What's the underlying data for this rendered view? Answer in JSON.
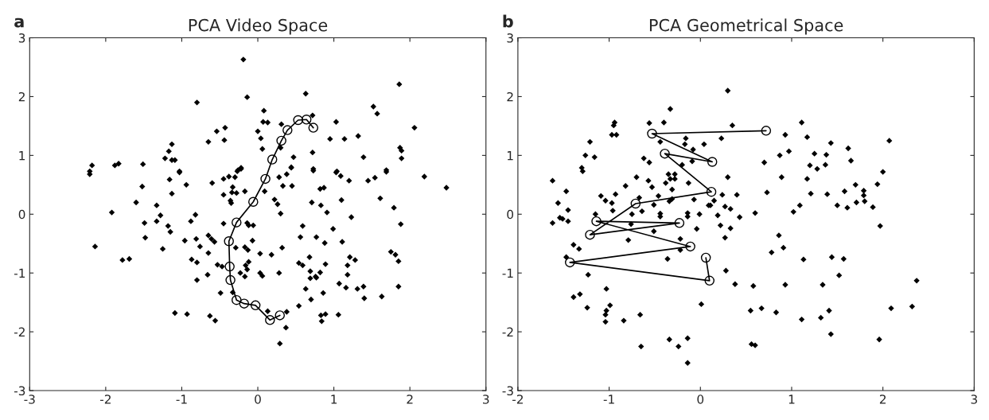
{
  "chart_data": [
    {
      "type": "scatter",
      "title": "PCA Video Space",
      "annotations": [
        "a"
      ],
      "xlim": [
        -3,
        3
      ],
      "ylim": [
        -3,
        3
      ],
      "xticks": [
        -3,
        -2,
        -1,
        0,
        1,
        2,
        3
      ],
      "yticks": [
        -3,
        -2,
        -1,
        0,
        1,
        2,
        3
      ],
      "grid": false,
      "series": [
        {
          "type": "scatter",
          "marker": "diamond",
          "color": "#000000",
          "x": [
            -0.19,
            -0.8,
            -0.14,
            0.63,
            1.86,
            0.08,
            0.07,
            0.13,
            0,
            0.04,
            0.06,
            -0.54,
            -0.43,
            -0.44,
            -0.65,
            -1.13,
            -1.17,
            -1.22,
            -1.13,
            -1.09,
            -1.51,
            -1.88,
            -1.83,
            -2.18,
            0.31,
            0.72,
            1.03,
            0.95,
            1.14,
            1.32,
            1.52,
            1.57,
            2.06,
            1.39,
            1.87,
            1.89,
            1.89,
            0.72,
            0.47,
            0.44,
            0.3,
            -0.22,
            -0.26,
            0.73,
            1.04,
            1.69,
            -2.21,
            -1.03,
            -2.21,
            -1.16,
            -1.03,
            -1.52,
            -1.13,
            -0.94,
            -1.6,
            -1.33,
            -1.92,
            -1.28,
            -1.33,
            -1.49,
            -1.18,
            -1.15,
            -1.48,
            -2.14,
            -1.25,
            -1.78,
            -1.69,
            -0.96,
            -0.81,
            -0.76,
            -0.88,
            -0.82,
            -0.6,
            -0.45,
            -0.38,
            -0.3,
            -0.27,
            -0.22,
            -0.33,
            -0.34,
            -0.28,
            -0.17,
            -0.45,
            -0.36,
            -0.35,
            -0.45,
            -0.65,
            -0.61,
            -0.57,
            -0.65,
            -0.87,
            -0.8,
            -0.53,
            -0.47,
            -0.66,
            -0.8,
            -0.29,
            -0.14,
            -0.12,
            -0.06,
            -0.07,
            -0.17,
            -0.13,
            0.03,
            -0.12,
            -0.16,
            -0.14,
            -0.23,
            -0.17,
            0.03,
            0.06,
            0.28,
            0.18,
            0.32,
            0.3,
            0.22,
            0.26,
            0.09,
            0.28,
            0.38,
            0.44,
            0.33,
            0.45,
            0.73,
            0.82,
            0.87,
            0.71,
            0.83,
            0.91,
            1.03,
            1.09,
            1.2,
            1.45,
            1.54,
            1.69,
            2.19,
            2.48,
            1.1,
            1.23,
            1.61,
            1.79,
            1.88,
            0.59,
            0.99,
            0.56,
            0.77,
            0.88,
            1.11,
            0.68,
            0.54,
            0.59,
            0.89,
            1.21,
            1.28,
            1.18,
            0.69,
            0.82,
            0.76,
            1.18,
            1.75,
            1.81,
            1.85,
            -0.49,
            -0.33,
            -1.09,
            -0.93,
            -0.63,
            -0.56,
            0.13,
            0.38,
            0.37,
            0.29,
            0.54,
            0.63,
            0.7,
            0.69,
            0.77,
            0.86,
            0.83,
            0.89,
            0.84,
            1.06,
            1.07,
            1.16,
            1.31,
            1.39,
            1.4,
            1.63,
            1.85
          ],
          "values": [
            2.63,
            1.9,
            1.99,
            2.05,
            2.21,
            1.76,
            1.57,
            1.56,
            1.41,
            1.29,
            1.11,
            1.41,
            1.47,
            1.26,
            1.23,
            1.19,
            1.07,
            0.95,
            0.92,
            0.92,
            0.85,
            0.83,
            0.86,
            0.83,
            1.53,
            1.68,
            1.57,
            1.28,
            1.28,
            1.33,
            1.83,
            1.71,
            1.47,
            0.97,
            1.13,
            1.08,
            0.95,
            1.05,
            0.97,
            0.8,
            1.13,
            0.79,
            0.75,
            0.77,
            0.73,
            0.75,
            0.73,
            0.73,
            0.68,
            0.59,
            0.71,
            0.47,
            0.35,
            0.5,
            0.2,
            0.15,
            0.03,
            -0.02,
            -0.12,
            -0.15,
            -0.2,
            -0.3,
            -0.4,
            -0.55,
            -0.59,
            -0.78,
            -0.76,
            -0.45,
            -0.42,
            -0.55,
            -0.12,
            -0.01,
            0.53,
            0.6,
            0.64,
            0.63,
            0.73,
            0.77,
            0.46,
            0.37,
            0.36,
            0.39,
            0.33,
            0.23,
            0.19,
            -0.16,
            -0.36,
            -0.42,
            -0.47,
            -0.66,
            -0.77,
            -0.82,
            -0.86,
            -0.89,
            -1.03,
            -1.12,
            -0.57,
            -0.15,
            -0.19,
            -0.19,
            -0.45,
            -0.56,
            -0.61,
            -0.67,
            -0.81,
            -0.87,
            -0.94,
            -1.0,
            -1.06,
            -1.0,
            -1.05,
            -1.0,
            -0.69,
            -0.57,
            0.01,
            0.25,
            0.17,
            0.39,
            0.63,
            0.68,
            0.79,
            0.48,
            0.48,
            0.74,
            0.43,
            0.45,
            0.2,
            0.15,
            0.03,
            0.71,
            0.65,
            0.57,
            0.57,
            0.62,
            0.72,
            0.64,
            0.45,
            0.24,
            -0.05,
            0.27,
            0.11,
            -0.17,
            -0.2,
            -0.25,
            -0.39,
            -0.39,
            -0.49,
            -0.47,
            -0.73,
            -0.83,
            -0.87,
            -0.85,
            -0.73,
            -0.78,
            -0.87,
            -0.97,
            -0.99,
            -1.06,
            -1.03,
            -0.64,
            -0.69,
            -0.8,
            -1.34,
            -1.33,
            -1.68,
            -1.7,
            -1.73,
            -1.81,
            -1.65,
            -1.66,
            -1.93,
            -2.2,
            -1.56,
            -1.27,
            -1.45,
            -1.09,
            -1.08,
            -1.34,
            -1.72,
            -1.7,
            -1.82,
            -1.71,
            -1.18,
            -1.25,
            -1.27,
            -1.23,
            -1.43,
            -1.4,
            -1.23
          ]
        },
        {
          "type": "line",
          "marker": "circle",
          "color": "#000000",
          "x": [
            0.73,
            0.64,
            0.53,
            0.39,
            0.31,
            0.19,
            0.1,
            -0.06,
            -0.28,
            -0.38,
            -0.37,
            -0.36,
            -0.28,
            -0.18,
            -0.03,
            0.16,
            0.29
          ],
          "values": [
            1.47,
            1.61,
            1.6,
            1.43,
            1.25,
            0.93,
            0.6,
            0.21,
            -0.14,
            -0.46,
            -0.89,
            -1.12,
            -1.46,
            -1.52,
            -1.55,
            -1.8,
            -1.72
          ]
        }
      ]
    },
    {
      "type": "scatter",
      "title": "PCA Geometrical Space",
      "annotations": [
        "b"
      ],
      "xlim": [
        -2,
        3
      ],
      "ylim": [
        -3,
        3
      ],
      "xticks": [
        -2,
        -1,
        0,
        1,
        2,
        3
      ],
      "yticks": [
        -3,
        -2,
        -1,
        0,
        1,
        2,
        3
      ],
      "grid": false,
      "series": [
        {
          "type": "scatter",
          "marker": "diamond",
          "color": "#000000",
          "x": [
            0.3,
            -0.33,
            -0.94,
            -0.95,
            -0.97,
            -0.92,
            -1.21,
            -1.26,
            -1.16,
            -1.3,
            -1.29,
            -0.56,
            -0.4,
            0.35,
            -0.16,
            -0.17,
            -0.08,
            0.04,
            0.23,
            -0.44,
            -0.62,
            -0.56,
            -0.09,
            -0.2,
            0.7,
            1.11,
            0.93,
            1.17,
            1.43,
            1.62,
            2.07,
            1.65,
            0.87,
            0.97,
            1.25,
            1.38,
            1.2,
            1.28,
            1.37,
            2.0,
            -1.62,
            -1.47,
            -1.56,
            -1.45,
            -1.54,
            -1.51,
            -1.45,
            -1.62,
            -1.39,
            -1.33,
            -1.47,
            -1.23,
            -1.09,
            -1.04,
            -0.97,
            -0.93,
            -0.82,
            -0.7,
            -0.96,
            -1.15,
            -0.57,
            -0.53,
            -0.38,
            -0.35,
            -0.33,
            -0.28,
            -0.28,
            -0.31,
            -0.13,
            0.3,
            -0.31,
            -0.34,
            -0.46,
            -0.67,
            -0.64,
            -0.51,
            -0.44,
            -0.44,
            -0.75,
            -0.76,
            -0.07,
            -0.01,
            -0.14,
            -0.14,
            0.09,
            0.11,
            0.15,
            0.24,
            0.27,
            0.33,
            0.4,
            0.19,
            0.43,
            0.6,
            0.22,
            0.33,
            0.27,
            -0.04,
            -0.51,
            -0.79,
            -0.22,
            -0.22,
            -0.36,
            0.28,
            0.73,
            0.89,
            1.17,
            1.21,
            1.39,
            1.02,
            1.09,
            1.5,
            1.58,
            1.61,
            1.7,
            1.79,
            1.79,
            1.71,
            1.8,
            1.89,
            1.94,
            1.97,
            0.86,
            0.91,
            0.78,
            1.13,
            1.44,
            1.57,
            1.52,
            2.37,
            -1.39,
            -1.32,
            -1.03,
            -1.24,
            -0.99,
            -1.03,
            -1.04,
            -1.04,
            -0.84,
            -0.66,
            -0.65,
            -0.34,
            -0.24,
            -0.14,
            -0.14,
            0.01,
            0.38,
            0.58,
            0.93,
            1.34,
            0.55,
            0.67,
            0.83,
            1.11,
            1.32,
            1.41,
            1.43,
            1.96,
            2.09,
            2.32,
            0.56,
            0.6
          ],
          "values": [
            2.1,
            1.79,
            1.56,
            1.51,
            1.35,
            1.35,
            1.23,
            1.0,
            0.97,
            0.79,
            0.73,
            1.55,
            1.56,
            1.51,
            1.29,
            1.19,
            1.1,
            1.19,
            1.29,
            1.23,
            0.95,
            0.88,
            0.9,
            0.84,
            0.88,
            1.56,
            1.35,
            1.31,
            1.21,
            1.12,
            1.25,
            0.91,
            1.0,
            1.07,
            1.03,
            1.01,
            0.83,
            0.77,
            0.84,
            0.72,
            0.57,
            0.39,
            0.19,
            0.07,
            -0.06,
            -0.08,
            -0.12,
            -0.15,
            -0.52,
            -0.59,
            -0.73,
            -1.03,
            0.31,
            0.23,
            0.19,
            0.34,
            0.48,
            0.63,
            0.06,
            0.0,
            0.57,
            0.46,
            0.53,
            0.68,
            0.6,
            0.6,
            0.68,
            0.42,
            0.53,
            0.63,
            0.26,
            0.22,
            0.31,
            0.28,
            0.05,
            0.16,
            0.01,
            -0.04,
            0.0,
            -0.17,
            0.25,
            0.0,
            0.02,
            -0.04,
            0.15,
            0.15,
            0.23,
            0.33,
            0.13,
            0.09,
            0.33,
            -0.02,
            -0.05,
            0.02,
            -0.19,
            -0.24,
            -0.4,
            -0.25,
            -0.29,
            -0.44,
            -0.42,
            -0.61,
            -0.76,
            -0.96,
            0.37,
            0.63,
            0.6,
            0.35,
            0.34,
            0.04,
            0.15,
            0.15,
            0.39,
            0.11,
            0.5,
            0.4,
            0.32,
            0.2,
            0.22,
            0.12,
            0.51,
            -0.2,
            -0.36,
            -0.57,
            -0.65,
            -0.77,
            -0.73,
            -0.76,
            -1.04,
            -1.13,
            -1.41,
            -1.36,
            -1.27,
            -1.59,
            -1.55,
            -1.64,
            -1.71,
            -1.83,
            -1.81,
            -1.71,
            -2.25,
            -2.13,
            -2.25,
            -2.11,
            -2.53,
            -1.53,
            -1.19,
            -1.22,
            -1.2,
            -1.2,
            -1.64,
            -1.6,
            -1.67,
            -1.79,
            -1.76,
            -1.64,
            -2.04,
            -2.13,
            -1.6,
            -1.57,
            -2.21,
            -2.23
          ]
        },
        {
          "type": "line",
          "marker": "circle",
          "color": "#000000",
          "x": [
            0.72,
            -0.53,
            0.13,
            -0.39,
            0.12,
            -0.71,
            -1.21,
            -0.23,
            -1.14,
            -0.11,
            -1.43,
            0.1,
            0.06
          ],
          "values": [
            1.42,
            1.37,
            0.89,
            1.03,
            0.38,
            0.18,
            -0.35,
            -0.15,
            -0.12,
            -0.55,
            -0.82,
            -1.13,
            -0.74
          ]
        }
      ]
    }
  ]
}
